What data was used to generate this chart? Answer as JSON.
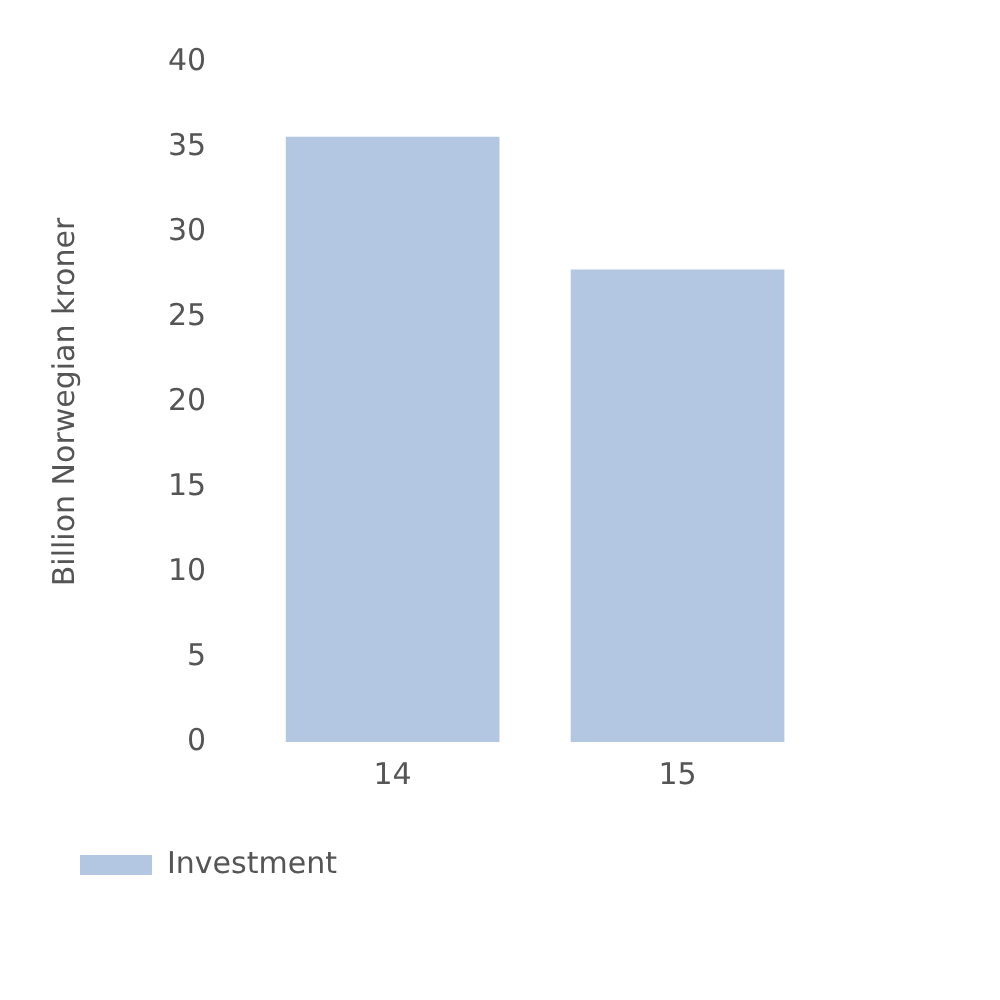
{
  "chart_data": {
    "type": "bar",
    "ylabel": "Billion Norwegian kroner",
    "categories": [
      "14",
      "15"
    ],
    "series": [
      {
        "name": "Investment",
        "color": "#b3c7e2",
        "values": [
          35.6,
          27.8
        ]
      }
    ],
    "ylim": [
      0,
      40
    ],
    "yticks": [
      0,
      5,
      10,
      15,
      20,
      25,
      30,
      35,
      40
    ],
    "grid": false,
    "legend": "bottom left"
  }
}
